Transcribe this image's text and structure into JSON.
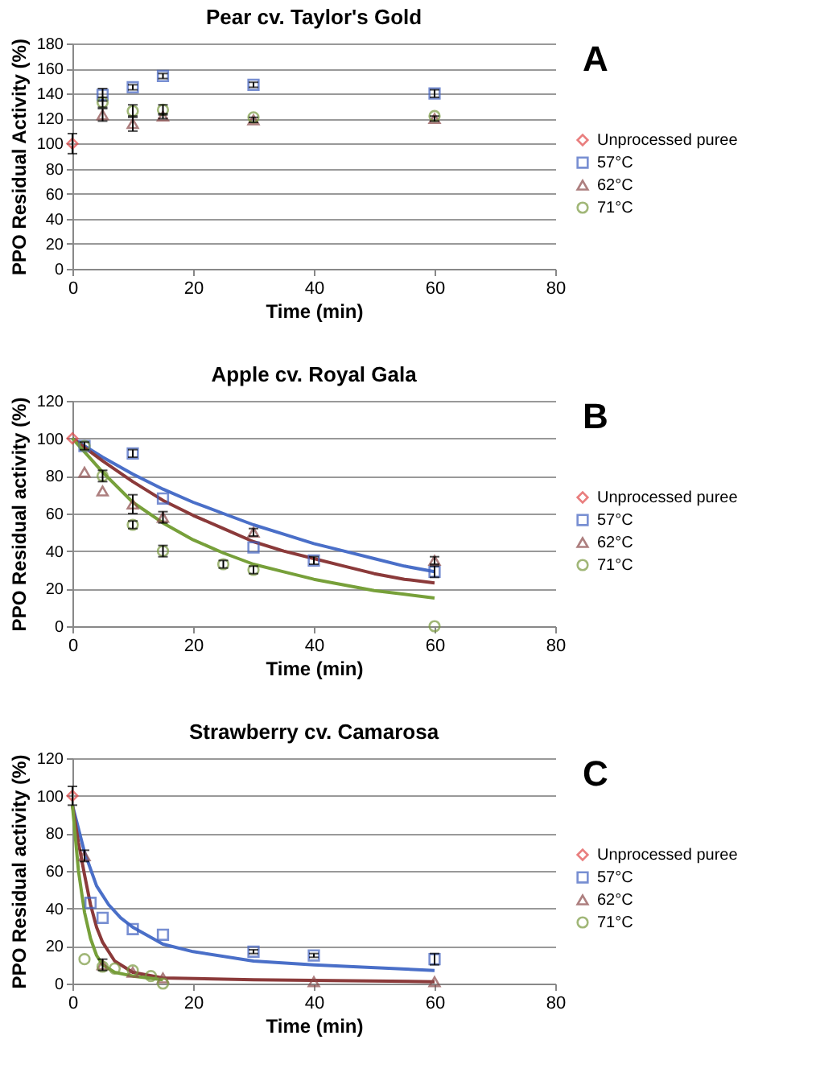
{
  "chart_data": [
    {
      "type": "scatter",
      "title": "Pear cv. Taylor's Gold",
      "xlabel": "Time (min)",
      "ylabel": "PPO Residual Activity (%)",
      "annotations": [
        "A"
      ],
      "xlim": [
        0,
        80
      ],
      "xticks": [
        0,
        20,
        40,
        60,
        80
      ],
      "ylim": [
        0,
        180
      ],
      "yticks": [
        0,
        20,
        40,
        60,
        80,
        100,
        120,
        140,
        160,
        180
      ],
      "grid": "y",
      "legend": "right",
      "series": [
        {
          "name": "Unprocessed puree",
          "color": "#e04848",
          "marker": "diamond",
          "x": [
            0
          ],
          "values": [
            100
          ],
          "errors": [
            8
          ]
        },
        {
          "name": "57°C",
          "color": "#4060c0",
          "marker": "square",
          "x": [
            5,
            10,
            15,
            30,
            60
          ],
          "values": [
            139,
            145,
            154,
            147,
            140
          ],
          "errors": [
            5,
            2,
            2,
            2,
            3
          ]
        },
        {
          "name": "62°C",
          "color": "#8b4a4a",
          "marker": "triangle",
          "x": [
            5,
            10,
            15,
            30,
            60
          ],
          "values": [
            123,
            116,
            122,
            119,
            120
          ],
          "errors": [
            5,
            6,
            2,
            2,
            2
          ]
        },
        {
          "name": "71°C",
          "color": "#7a9a40",
          "marker": "circle",
          "x": [
            5,
            10,
            15,
            30,
            60
          ],
          "values": [
            133,
            126,
            127,
            121,
            122
          ],
          "errors": [
            4,
            5,
            4,
            null,
            null
          ]
        }
      ]
    },
    {
      "type": "scatter",
      "title": "Apple cv. Royal Gala",
      "xlabel": "Time (min)",
      "ylabel": "PPO Residual activity (%)",
      "annotations": [
        "B"
      ],
      "xlim": [
        0,
        80
      ],
      "xticks": [
        0,
        20,
        40,
        60,
        80
      ],
      "ylim": [
        0,
        120
      ],
      "yticks": [
        0,
        20,
        40,
        60,
        80,
        100,
        120
      ],
      "grid": "y",
      "legend": "right",
      "series": [
        {
          "type": "line",
          "color": "#4a6fc8",
          "x": [
            0,
            5,
            10,
            15,
            20,
            25,
            30,
            35,
            40,
            45,
            50,
            55,
            60
          ],
          "values": [
            100,
            90,
            81,
            73,
            66,
            60,
            54,
            49,
            44,
            40,
            36,
            32,
            29
          ]
        },
        {
          "type": "line",
          "color": "#8b3a3a",
          "x": [
            0,
            5,
            10,
            15,
            20,
            25,
            30,
            35,
            40,
            45,
            50,
            55,
            60
          ],
          "values": [
            100,
            88,
            77,
            67,
            59,
            52,
            45,
            40,
            36,
            32,
            28,
            25,
            23
          ]
        },
        {
          "type": "line",
          "color": "#77a03a",
          "x": [
            0,
            5,
            10,
            15,
            20,
            25,
            30,
            35,
            40,
            45,
            50,
            55,
            60
          ],
          "values": [
            100,
            82,
            66,
            55,
            46,
            39,
            33,
            29,
            25,
            22,
            19,
            17,
            15
          ]
        },
        {
          "name": "Unprocessed puree",
          "color": "#e04848",
          "marker": "diamond",
          "x": [
            0
          ],
          "values": [
            100
          ],
          "errors": [
            null
          ]
        },
        {
          "name": "57°C",
          "color": "#4060c0",
          "marker": "square",
          "x": [
            2,
            10,
            15,
            30,
            40,
            60
          ],
          "values": [
            96,
            92,
            68,
            42,
            35,
            29
          ],
          "errors": [
            null,
            2,
            null,
            null,
            2,
            3
          ]
        },
        {
          "name": "62°C",
          "color": "#8b4a4a",
          "marker": "triangle",
          "x": [
            2,
            5,
            10,
            15,
            30,
            60
          ],
          "values": [
            82,
            72,
            65,
            58,
            50,
            35
          ],
          "errors": [
            null,
            null,
            5,
            3,
            2,
            2
          ]
        },
        {
          "name": "71°C",
          "color": "#7a9a40",
          "marker": "circle",
          "x": [
            2,
            5,
            10,
            15,
            25,
            30,
            60
          ],
          "values": [
            96,
            80,
            54,
            40,
            33,
            30,
            0
          ],
          "errors": [
            2,
            3,
            2,
            3,
            2,
            2,
            null
          ]
        }
      ]
    },
    {
      "type": "scatter",
      "title": "Strawberry cv. Camarosa",
      "xlabel": "Time (min)",
      "ylabel": "PPO Residual activity (%)",
      "annotations": [
        "C"
      ],
      "xlim": [
        0,
        80
      ],
      "xticks": [
        0,
        20,
        40,
        60,
        80
      ],
      "ylim": [
        0,
        120
      ],
      "yticks": [
        0,
        20,
        40,
        60,
        80,
        100,
        120
      ],
      "grid": "y",
      "legend": "right",
      "series": [
        {
          "type": "line",
          "color": "#4a6fc8",
          "x": [
            0,
            2,
            4,
            6,
            8,
            10,
            15,
            20,
            30,
            40,
            60
          ],
          "values": [
            95,
            70,
            52,
            42,
            35,
            30,
            21,
            17,
            12,
            10,
            7
          ]
        },
        {
          "type": "line",
          "color": "#8b3a3a",
          "x": [
            0,
            1,
            2,
            3,
            4,
            5,
            7,
            10,
            15,
            30,
            60
          ],
          "values": [
            95,
            75,
            58,
            42,
            30,
            22,
            12,
            6,
            3,
            2,
            1
          ]
        },
        {
          "type": "line",
          "color": "#77a03a",
          "x": [
            0,
            1,
            2,
            3,
            4,
            5,
            7,
            10,
            15
          ],
          "values": [
            95,
            60,
            38,
            24,
            15,
            10,
            6,
            4,
            2
          ]
        },
        {
          "name": "Unprocessed puree",
          "color": "#e04848",
          "marker": "diamond",
          "x": [
            0
          ],
          "values": [
            100
          ],
          "errors": [
            5
          ]
        },
        {
          "name": "57°C",
          "color": "#4060c0",
          "marker": "square",
          "x": [
            3,
            5,
            10,
            15,
            30,
            40,
            60
          ],
          "values": [
            43,
            35,
            29,
            26,
            17,
            15,
            13
          ],
          "errors": [
            null,
            null,
            null,
            null,
            1,
            1,
            3
          ]
        },
        {
          "name": "62°C",
          "color": "#8b4a4a",
          "marker": "triangle",
          "x": [
            2,
            5,
            10,
            15,
            40,
            60
          ],
          "values": [
            68,
            10,
            6,
            3,
            1,
            1
          ],
          "errors": [
            3,
            3,
            null,
            null,
            null,
            null
          ]
        },
        {
          "name": "71°C",
          "color": "#7a9a40",
          "marker": "circle",
          "x": [
            2,
            5,
            7,
            10,
            13,
            15
          ],
          "values": [
            13,
            9,
            8,
            7,
            4,
            0
          ],
          "errors": [
            null,
            null,
            null,
            null,
            null,
            null
          ]
        }
      ]
    }
  ]
}
